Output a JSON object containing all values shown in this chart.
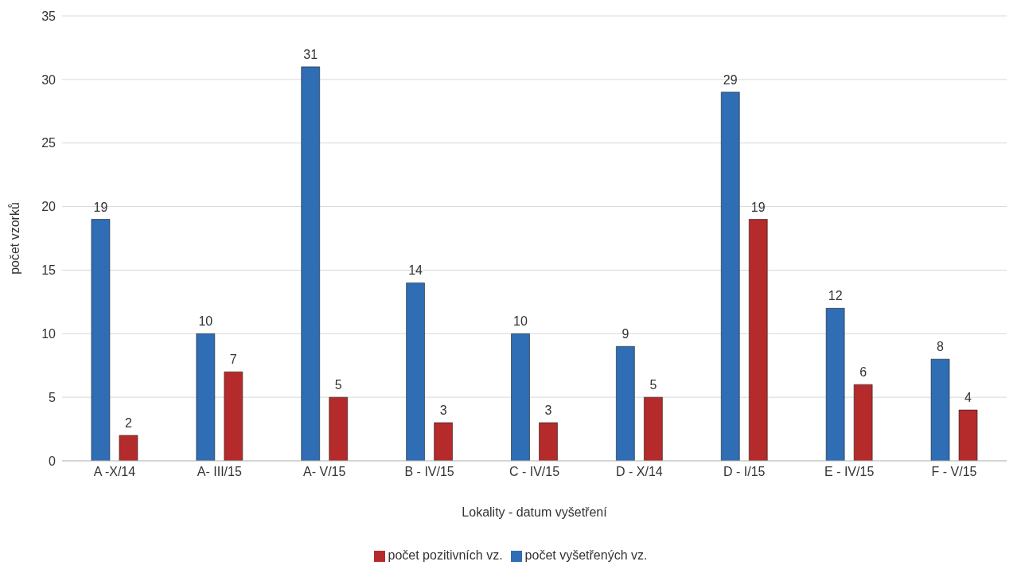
{
  "chart_data": {
    "type": "bar",
    "xlabel": "Lokality - datum vyšetření",
    "ylabel": "počet vzorků",
    "categories": [
      "A -X/14",
      "A- III/15",
      "A- V/15",
      "B - IV/15",
      "C - IV/15",
      "D - X/14",
      "D - I/15",
      "E - IV/15",
      "F - V/15"
    ],
    "series": [
      {
        "name": "počet vyšetřených vz.",
        "color": "#2f6db5",
        "values": [
          19,
          10,
          31,
          14,
          10,
          9,
          29,
          12,
          8
        ]
      },
      {
        "name": "počet pozitivních vz.",
        "color": "#b52a2a",
        "values": [
          2,
          7,
          5,
          3,
          3,
          5,
          19,
          6,
          4
        ]
      }
    ],
    "ylim": [
      0,
      35
    ],
    "yticks": [
      0,
      5,
      10,
      15,
      20,
      25,
      30,
      35
    ],
    "grid": "y",
    "legend": "bottom",
    "data_labels": true
  }
}
